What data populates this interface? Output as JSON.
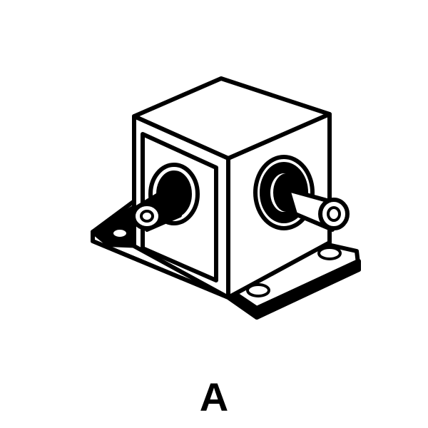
{
  "figure": {
    "caption": "A",
    "subject-icon": "coaxial-connector-block-icon",
    "colors": {
      "ink": "#000000",
      "paper": "#ffffff"
    }
  }
}
